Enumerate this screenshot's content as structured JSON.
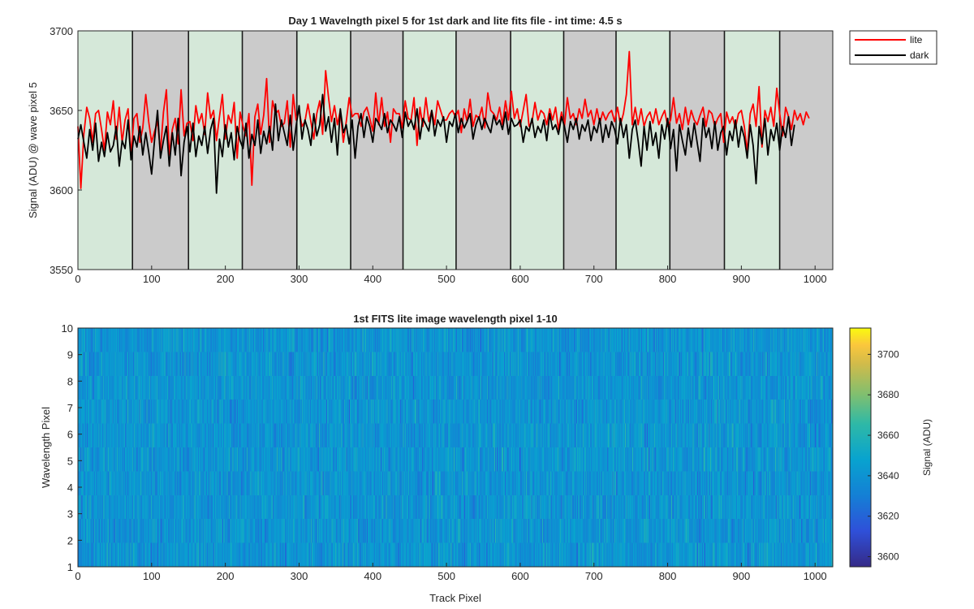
{
  "chart_data": [
    {
      "type": "line",
      "title": "Day 1 Wavelngth pixel 5 for 1st dark and lite fits file - int time: 4.5 s",
      "xlabel": "",
      "ylabel": "Signal (ADU) @ wave pixel 5",
      "xlim": [
        0,
        1024
      ],
      "ylim": [
        3550,
        3700
      ],
      "xticks": [
        0,
        100,
        200,
        300,
        400,
        500,
        600,
        700,
        800,
        900,
        1000
      ],
      "yticks": [
        3550,
        3600,
        3650,
        3700
      ],
      "legend": {
        "placement": "outside-top-right",
        "entries": [
          "lite",
          "dark"
        ]
      },
      "background_bands": {
        "boundaries": [
          0,
          74,
          150,
          223,
          297,
          370,
          441,
          513,
          587,
          659,
          730,
          803,
          877,
          952,
          1024
        ],
        "states": [
          "lite",
          "dark",
          "lite",
          "dark",
          "lite",
          "dark",
          "lite",
          "dark",
          "lite",
          "dark",
          "lite",
          "dark",
          "lite",
          "dark"
        ],
        "colors": {
          "lite": "#d5e8d9",
          "dark": "#cbcbcb"
        }
      },
      "series": [
        {
          "name": "lite",
          "color": "#ff0000",
          "x_step": 4,
          "values": [
            3640,
            3601,
            3635,
            3652,
            3645,
            3630,
            3648,
            3650,
            3638,
            3625,
            3649,
            3641,
            3656,
            3632,
            3652,
            3630,
            3644,
            3651,
            3622,
            3645,
            3648,
            3630,
            3639,
            3660,
            3643,
            3630,
            3637,
            3643,
            3624,
            3649,
            3663,
            3622,
            3638,
            3645,
            3629,
            3663,
            3634,
            3642,
            3643,
            3631,
            3653,
            3642,
            3648,
            3635,
            3661,
            3645,
            3650,
            3631,
            3646,
            3660,
            3632,
            3647,
            3642,
            3655,
            3620,
            3649,
            3640,
            3634,
            3648,
            3603,
            3646,
            3654,
            3635,
            3647,
            3670,
            3630,
            3656,
            3648,
            3650,
            3640,
            3642,
            3656,
            3627,
            3660,
            3644,
            3650,
            3640,
            3643,
            3654,
            3643,
            3632,
            3648,
            3656,
            3635,
            3675,
            3658,
            3643,
            3653,
            3641,
            3650,
            3630,
            3643,
            3658,
            3646,
            3648,
            3648,
            3640,
            3649,
            3652,
            3645,
            3637,
            3661,
            3641,
            3658,
            3640,
            3649,
            3630,
            3651,
            3648,
            3648,
            3639,
            3656,
            3645,
            3644,
            3658,
            3628,
            3652,
            3640,
            3658,
            3643,
            3650,
            3641,
            3656,
            3650,
            3644,
            3644,
            3648,
            3650,
            3646,
            3650,
            3636,
            3651,
            3643,
            3657,
            3640,
            3647,
            3645,
            3652,
            3639,
            3661,
            3650,
            3648,
            3644,
            3652,
            3641,
            3656,
            3644,
            3662,
            3645,
            3651,
            3640,
            3650,
            3660,
            3640,
            3643,
            3655,
            3644,
            3650,
            3648,
            3641,
            3651,
            3644,
            3652,
            3638,
            3649,
            3640,
            3658,
            3645,
            3648,
            3641,
            3651,
            3645,
            3657,
            3646,
            3650,
            3641,
            3651,
            3642,
            3649,
            3644,
            3648,
            3650,
            3643,
            3652,
            3641,
            3648,
            3660,
            3687,
            3641,
            3652,
            3641,
            3651,
            3640,
            3646,
            3649,
            3642,
            3651,
            3641,
            3646,
            3650,
            3640,
            3644,
            3658,
            3642,
            3648,
            3638,
            3652,
            3641,
            3650,
            3644,
            3641,
            3647,
            3652,
            3640,
            3650,
            3648,
            3640,
            3645,
            3648,
            3630,
            3649,
            3642,
            3646,
            3639,
            3648,
            3650,
            3640,
            3624,
            3648,
            3654,
            3640,
            3665,
            3627,
            3650,
            3643,
            3652,
            3640,
            3664,
            3648,
            3634,
            3652,
            3646,
            3638,
            3650,
            3644,
            3648,
            3641,
            3649,
            3645
          ]
        },
        {
          "name": "dark",
          "color": "#000000",
          "x_step": 4,
          "values": [
            3632,
            3641,
            3630,
            3620,
            3638,
            3625,
            3642,
            3618,
            3630,
            3621,
            3636,
            3624,
            3628,
            3640,
            3615,
            3631,
            3626,
            3644,
            3619,
            3634,
            3627,
            3640,
            3622,
            3636,
            3624,
            3610,
            3632,
            3650,
            3620,
            3631,
            3640,
            3615,
            3636,
            3622,
            3645,
            3609,
            3630,
            3640,
            3624,
            3642,
            3621,
            3634,
            3628,
            3640,
            3623,
            3638,
            3645,
            3598,
            3632,
            3621,
            3641,
            3627,
            3636,
            3619,
            3640,
            3631,
            3626,
            3642,
            3620,
            3635,
            3628,
            3644,
            3623,
            3637,
            3629,
            3640,
            3625,
            3654,
            3631,
            3644,
            3636,
            3628,
            3647,
            3625,
            3640,
            3653,
            3632,
            3644,
            3638,
            3628,
            3648,
            3634,
            3641,
            3660,
            3637,
            3646,
            3630,
            3645,
            3622,
            3651,
            3636,
            3641,
            3629,
            3644,
            3620,
            3640,
            3648,
            3633,
            3646,
            3640,
            3630,
            3645,
            3642,
            3638,
            3648,
            3636,
            3644,
            3641,
            3637,
            3646,
            3633,
            3649,
            3640,
            3644,
            3638,
            3651,
            3632,
            3645,
            3641,
            3637,
            3650,
            3634,
            3644,
            3640,
            3646,
            3630,
            3643,
            3640,
            3648,
            3636,
            3645,
            3639,
            3643,
            3648,
            3632,
            3641,
            3646,
            3638,
            3645,
            3640,
            3636,
            3647,
            3641,
            3644,
            3638,
            3649,
            3635,
            3645,
            3640,
            3641,
            3644,
            3630,
            3640,
            3637,
            3645,
            3633,
            3640,
            3636,
            3644,
            3631,
            3648,
            3638,
            3641,
            3635,
            3646,
            3640,
            3630,
            3643,
            3638,
            3645,
            3632,
            3641,
            3637,
            3644,
            3631,
            3640,
            3636,
            3645,
            3630,
            3641,
            3633,
            3643,
            3638,
            3629,
            3645,
            3633,
            3641,
            3620,
            3638,
            3644,
            3631,
            3615,
            3640,
            3625,
            3643,
            3628,
            3636,
            3620,
            3641,
            3632,
            3645,
            3626,
            3638,
            3612,
            3641,
            3631,
            3622,
            3639,
            3627,
            3642,
            3630,
            3618,
            3645,
            3633,
            3639,
            3626,
            3643,
            3625,
            3636,
            3640,
            3622,
            3637,
            3631,
            3644,
            3627,
            3640,
            3633,
            3620,
            3641,
            3628,
            3604,
            3640,
            3629,
            3645,
            3622,
            3638,
            3631,
            3642,
            3625,
            3640,
            3633,
            3646,
            3628,
            3641
          ]
        }
      ]
    },
    {
      "type": "heatmap",
      "title": "1st FITS lite image wavelength pixel 1-10",
      "xlabel": "Track Pixel",
      "ylabel": "Wavelength Pixel",
      "xlim": [
        0,
        1024
      ],
      "ylim": [
        1,
        10
      ],
      "xticks": [
        0,
        100,
        200,
        300,
        400,
        500,
        600,
        700,
        800,
        900,
        1000
      ],
      "yticks": [
        1,
        2,
        3,
        4,
        5,
        6,
        7,
        8,
        9,
        10
      ],
      "rows": 10,
      "columns": 1024,
      "value_mean": 3641,
      "value_spread": 12,
      "colorbar": {
        "label": "Signal (ADU)",
        "range": [
          3595,
          3713
        ],
        "ticks": [
          3600,
          3620,
          3640,
          3660,
          3680,
          3700
        ],
        "colormap": "parula"
      }
    }
  ]
}
